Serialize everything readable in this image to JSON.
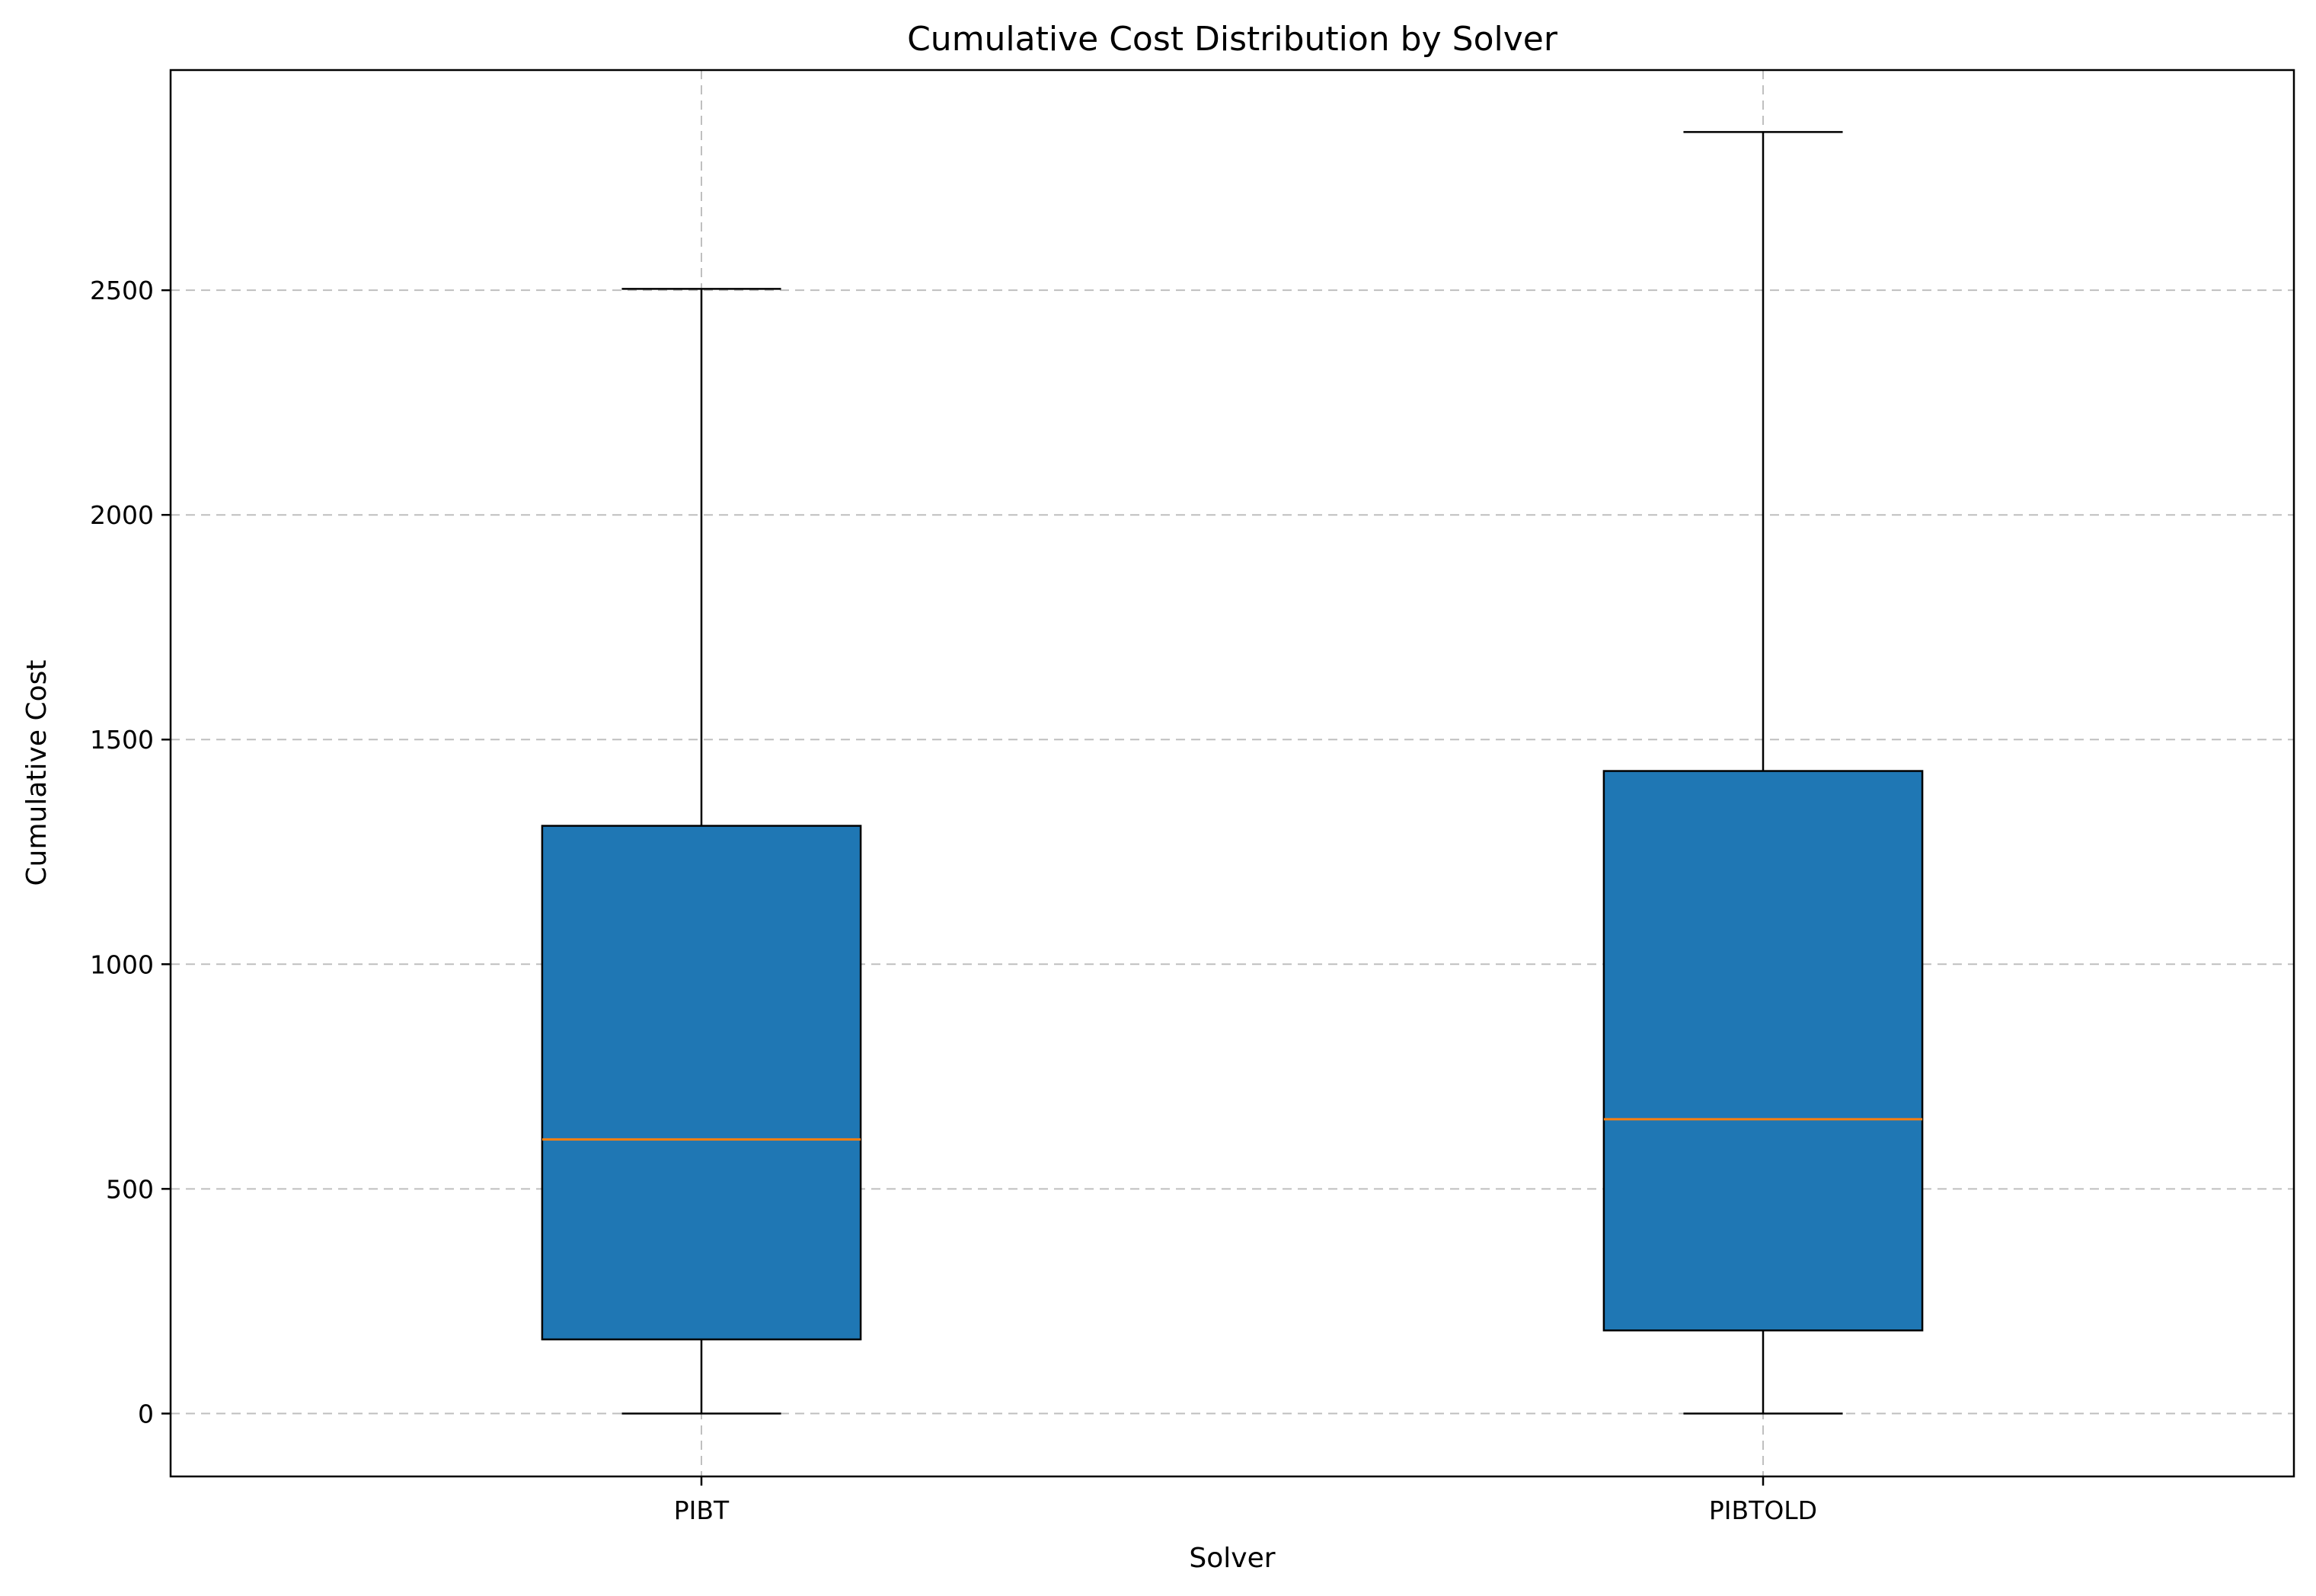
{
  "chart_data": {
    "type": "box",
    "title": "Cumulative Cost Distribution by Solver",
    "xlabel": "Solver",
    "ylabel": "Cumulative Cost",
    "ylim": [
      -140,
      2990
    ],
    "yticks": [
      0,
      500,
      1000,
      1500,
      2000,
      2500
    ],
    "grid": true,
    "categories": [
      "PIBT",
      "PIBTOLD"
    ],
    "boxes": [
      {
        "name": "PIBT",
        "whisker_low": 0,
        "q1": 165,
        "median": 610,
        "q3": 1308,
        "whisker_high": 2503
      },
      {
        "name": "PIBTOLD",
        "whisker_low": 0,
        "q1": 185,
        "median": 655,
        "q3": 1430,
        "whisker_high": 2852
      }
    ],
    "colors": {
      "box_fill": "#1f77b4",
      "median": "#ff7f0e",
      "edge": "#000000",
      "grid": "#b0b0b0"
    }
  }
}
